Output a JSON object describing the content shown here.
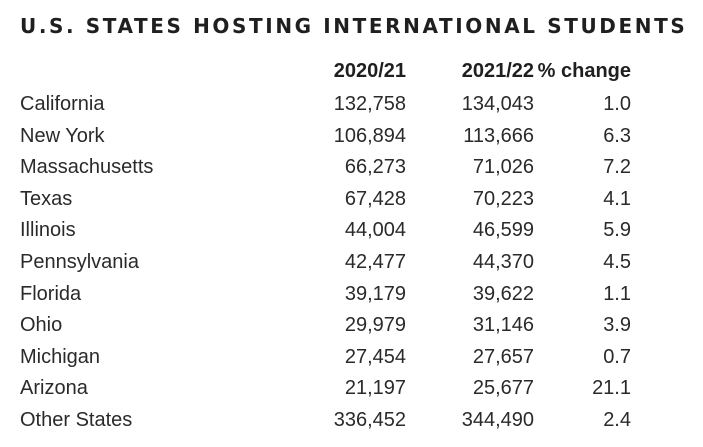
{
  "title": "U.S. STATES HOSTING INTERNATIONAL STUDENTS",
  "chart_data": {
    "type": "table",
    "columns": [
      "",
      "2020/21",
      "2021/22",
      "% change"
    ],
    "rows": [
      {
        "state": "California",
        "y2020_21": "132,758",
        "y2021_22": "134,043",
        "change": "1.0"
      },
      {
        "state": "New York",
        "y2020_21": "106,894",
        "y2021_22": "113,666",
        "change": "6.3"
      },
      {
        "state": "Massachusetts",
        "y2020_21": "66,273",
        "y2021_22": "71,026",
        "change": "7.2"
      },
      {
        "state": "Texas",
        "y2020_21": "67,428",
        "y2021_22": "70,223",
        "change": "4.1"
      },
      {
        "state": "Illinois",
        "y2020_21": "44,004",
        "y2021_22": "46,599",
        "change": "5.9"
      },
      {
        "state": "Pennsylvania",
        "y2020_21": "42,477",
        "y2021_22": "44,370",
        "change": "4.5"
      },
      {
        "state": "Florida",
        "y2020_21": "39,179",
        "y2021_22": "39,622",
        "change": "1.1"
      },
      {
        "state": "Ohio",
        "y2020_21": "29,979",
        "y2021_22": "31,146",
        "change": "3.9"
      },
      {
        "state": "Michigan",
        "y2020_21": "27,454",
        "y2021_22": "27,657",
        "change": "0.7"
      },
      {
        "state": "Arizona",
        "y2020_21": "21,197",
        "y2021_22": "25,677",
        "change": "21.1"
      },
      {
        "state": "Other States",
        "y2020_21": "336,452",
        "y2021_22": "344,490",
        "change": "2.4"
      }
    ]
  }
}
